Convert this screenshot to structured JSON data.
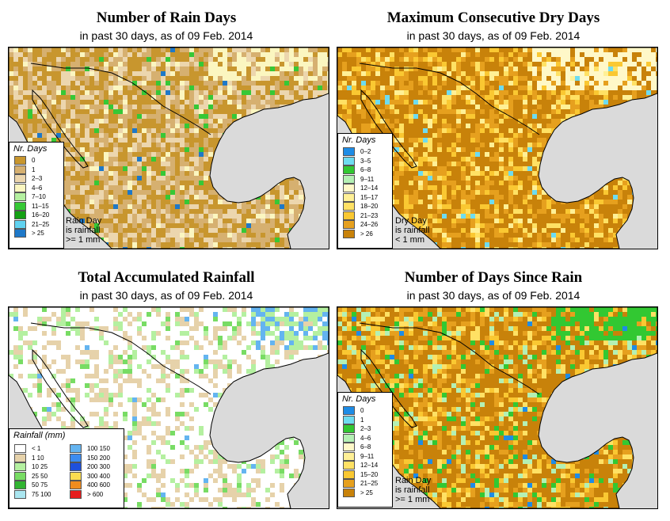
{
  "panels": [
    {
      "id": "rain-days",
      "title": "Number of Rain Days",
      "subtitle": "in past 30 days, as of  09 Feb. 2014",
      "legend_title": "Nr. Days",
      "legend": [
        {
          "label": "0",
          "color": "#c8962e"
        },
        {
          "label": "1",
          "color": "#d6b070"
        },
        {
          "label": "2–3",
          "color": "#ecd6ae"
        },
        {
          "label": "4–6",
          "color": "#fbf6c0"
        },
        {
          "label": "7–10",
          "color": "#b4f0a0"
        },
        {
          "label": "11–15",
          "color": "#36c836"
        },
        {
          "label": "16–20",
          "color": "#14a014"
        },
        {
          "label": "21–25",
          "color": "#60d2f0"
        },
        {
          "label": "> 25",
          "color": "#1e78c8"
        }
      ],
      "note": [
        "Rain Day",
        "is rainfall",
        ">= 1 mm"
      ]
    },
    {
      "id": "dry-days",
      "title": "Maximum Consecutive Dry Days",
      "subtitle": "in past 30 days, as of  09 Feb. 2014",
      "legend_title": "Nr. Days",
      "legend": [
        {
          "label": "0–2",
          "color": "#1e8ce6"
        },
        {
          "label": "3–5",
          "color": "#6edcf0"
        },
        {
          "label": "6–8",
          "color": "#32c832"
        },
        {
          "label": "9–11",
          "color": "#b4f0b4"
        },
        {
          "label": "12–14",
          "color": "#fff8c8"
        },
        {
          "label": "15–17",
          "color": "#fff096"
        },
        {
          "label": "18–20",
          "color": "#ffe164"
        },
        {
          "label": "21–23",
          "color": "#fac832"
        },
        {
          "label": "24–26",
          "color": "#e6a01e"
        },
        {
          "label": "> 26",
          "color": "#c8820a"
        }
      ],
      "note": [
        "Dry Day",
        "is rainfall",
        "< 1 mm"
      ]
    },
    {
      "id": "rainfall",
      "title": "Total Accumulated Rainfall",
      "subtitle": "in past 30 days, as of  09 Feb. 2014",
      "legend_title": "Rainfall (mm)",
      "legend_left": [
        {
          "label": "< 1",
          "color": "#ffffff"
        },
        {
          "label": "1    10",
          "color": "#e6d2aa"
        },
        {
          "label": "10    25",
          "color": "#b4f0a0"
        },
        {
          "label": "25    50",
          "color": "#78dc64"
        },
        {
          "label": "50    75",
          "color": "#32b432"
        },
        {
          "label": "75    100",
          "color": "#aae6f0"
        }
      ],
      "legend_right": [
        {
          "label": "100    150",
          "color": "#64b4f0"
        },
        {
          "label": "150    200",
          "color": "#3c8cf0"
        },
        {
          "label": "200    300",
          "color": "#1e50dc"
        },
        {
          "label": "300    400",
          "color": "#fadc50"
        },
        {
          "label": "400    600",
          "color": "#f08c1e"
        },
        {
          "label": "> 600",
          "color": "#e61e1e"
        }
      ]
    },
    {
      "id": "days-since",
      "title": "Number of Days Since Rain",
      "subtitle": "in past 30 days, as of  09 Feb. 2014",
      "legend_title": "Nr. Days",
      "legend": [
        {
          "label": "0",
          "color": "#1e8ce6"
        },
        {
          "label": "1",
          "color": "#6edcf0"
        },
        {
          "label": "2–3",
          "color": "#32c832"
        },
        {
          "label": "4–6",
          "color": "#b4f0b4"
        },
        {
          "label": "6–8",
          "color": "#fff8c8"
        },
        {
          "label": "9–11",
          "color": "#fff096"
        },
        {
          "label": "12–14",
          "color": "#ffe164"
        },
        {
          "label": "15–20",
          "color": "#fac832"
        },
        {
          "label": "21–25",
          "color": "#e6a01e"
        },
        {
          "label": "> 25",
          "color": "#c8820a"
        }
      ],
      "note": [
        "Rain Day",
        "is rainfall",
        ">= 1 mm"
      ]
    }
  ]
}
